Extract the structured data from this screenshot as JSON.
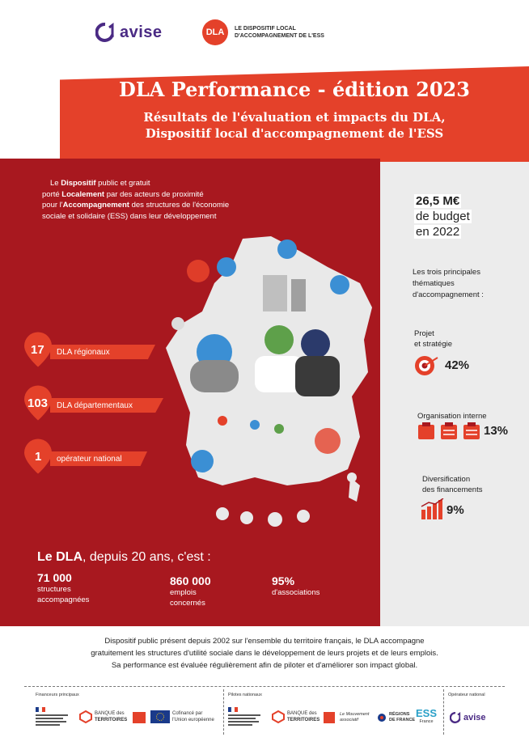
{
  "header": {
    "avise_label": "avise",
    "dla_badge": "DLA",
    "dla_line1": "LE DISPOSITIF LOCAL",
    "dla_line2": "D'ACCOMPAGNEMENT DE L'ESS"
  },
  "title": {
    "main": "DLA Performance - édition 2023",
    "sub1": "Résultats de l'évaluation et impacts du DLA,",
    "sub2": "Dispositif local d'accompagnement de l'ESS"
  },
  "intro": {
    "p1_a": "Le ",
    "p1_b": "Dispositif",
    "p1_c": " public et gratuit",
    "p2_a": "porté ",
    "p2_b": "Localement",
    "p2_c": " par des acteurs de proximité",
    "p3_a": "pour l'",
    "p3_b": "Accompagnement",
    "p3_c": " des structures de l'économie",
    "p4": "sociale et solidaire (ESS) dans leur développement"
  },
  "pins": [
    {
      "num": "17",
      "label": "DLA régionaux"
    },
    {
      "num": "103",
      "label": "DLA départementaux"
    },
    {
      "num": "1",
      "label": "opérateur national"
    }
  ],
  "summary": {
    "title_bold": "Le DLA",
    "title_rest": ", depuis 20 ans, c'est :",
    "stats": [
      {
        "value": "71 000",
        "line1": "structures",
        "line2": "accompagnées"
      },
      {
        "value": "860 000",
        "line1": "emplois",
        "line2": "concernés"
      },
      {
        "value": "95%",
        "line1": "d'associations",
        "line2": ""
      }
    ]
  },
  "budget": {
    "amount": "26,5 M€",
    "line2": "de budget",
    "line3": "en 2022"
  },
  "themes": {
    "title1": "Les trois principales",
    "title2": "thématiques",
    "title3": "d'accompagnement :",
    "items": [
      {
        "line1": "Projet",
        "line2": "et stratégie",
        "pct": "42%",
        "icon": "target-icon"
      },
      {
        "line1": "Organisation interne",
        "line2": "",
        "pct": "13%",
        "icon": "clipboards-icon"
      },
      {
        "line1": "Diversification",
        "line2": "des financements",
        "pct": "9%",
        "icon": "bar-growth-icon"
      }
    ]
  },
  "footer": {
    "line1": "Dispositif public présent depuis 2002 sur l'ensemble du territoire français, le DLA accompagne",
    "line2": "gratuitement les structures d'utilité sociale dans le développement de leurs projets et de leurs emplois.",
    "line3": "Sa performance est évaluée régulièrement afin de piloter et d'améliorer son impact global."
  },
  "partners": {
    "group1": "Financeurs principaux",
    "group2": "Pilotes nationaux",
    "group3": "Opérateur national",
    "banque_a": "BANQUE des",
    "banque_b": "TERRITOIRES",
    "eu_a": "Cofinancé par",
    "eu_b": "l'Union européenne",
    "mouvement": "Le Mouvement associatif",
    "regions_a": "RÉGIONS",
    "regions_b": "DE FRANCE",
    "ess_a": "ESS",
    "ess_b": "France",
    "avise": "avise"
  },
  "colors": {
    "red": "#a8181f",
    "orange_red": "#e4412a",
    "grey": "#ececec",
    "purple": "#4a2a84"
  }
}
